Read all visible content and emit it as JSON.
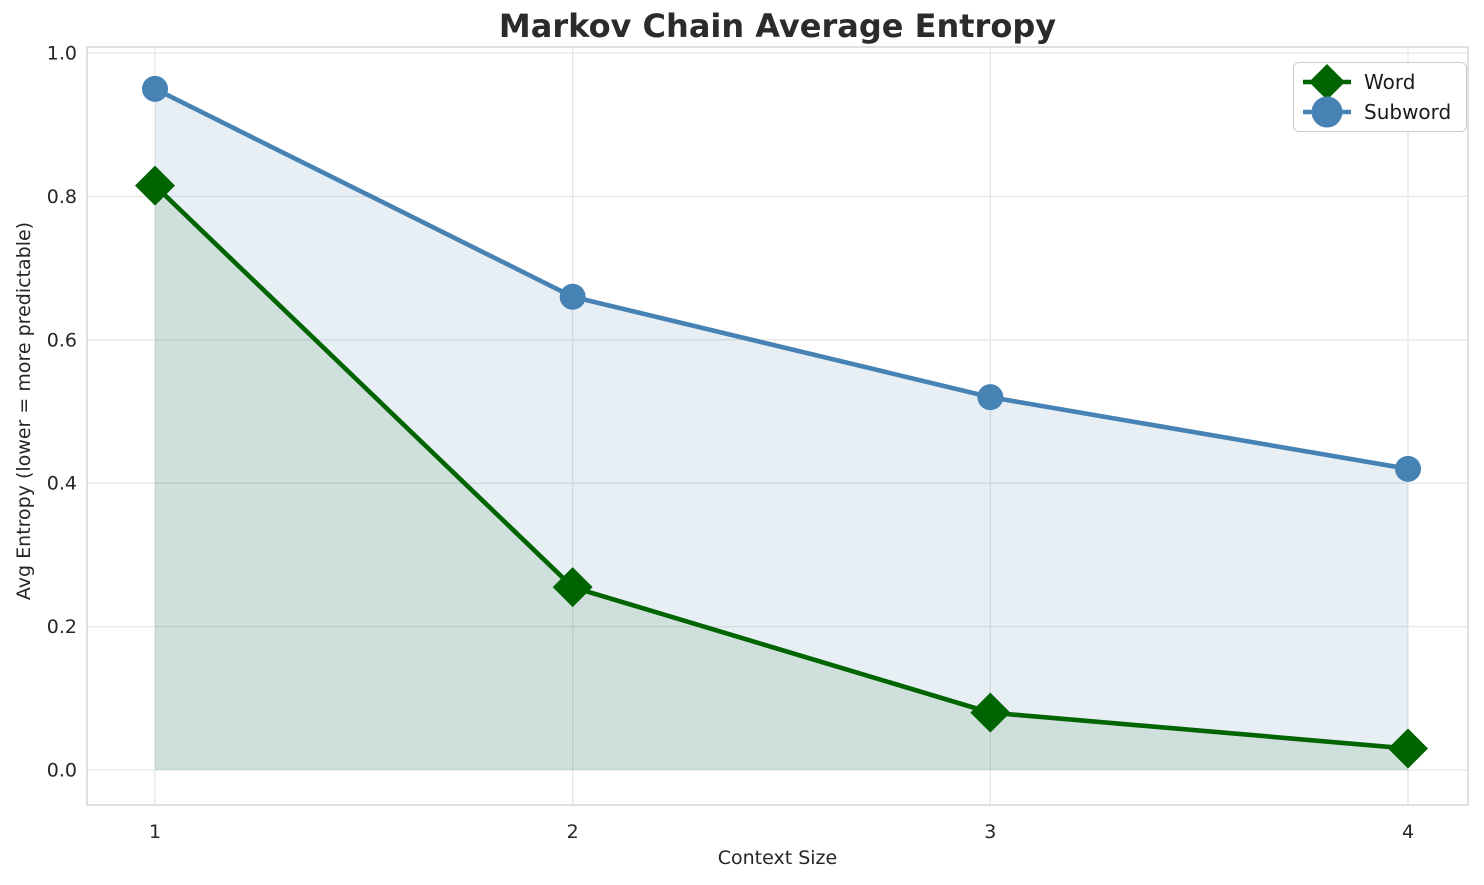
{
  "colors": {
    "background": "#ffffff",
    "text": "#262626",
    "title": "#2b2b2b",
    "grid": "#e6e6e6",
    "spine": "#d5d5d5",
    "legend_border": "#cccccc",
    "word": "#006400",
    "subword": "#4682b4",
    "word_fill": "rgba(0,100,0,0.10)",
    "subword_fill": "rgba(70,130,180,0.13)"
  },
  "chart_data": {
    "type": "line",
    "title": "Markov Chain Average Entropy",
    "xlabel": "Context Size",
    "ylabel": "Avg Entropy (lower = more predictable)",
    "x": [
      1,
      2,
      3,
      4
    ],
    "x_tick_labels": [
      "1",
      "2",
      "3",
      "4"
    ],
    "y_ticks": [
      0.0,
      0.2,
      0.4,
      0.6,
      0.8,
      1.0
    ],
    "y_tick_labels": [
      "0.0",
      "0.2",
      "0.4",
      "0.6",
      "0.8",
      "1.0"
    ],
    "xlim": [
      0.85,
      4.15
    ],
    "ylim": [
      -0.05,
      1.01
    ],
    "grid": true,
    "legend_position": "upper right",
    "series": [
      {
        "name": "Word",
        "marker": "diamond",
        "color": "#006400",
        "fill_color": "rgba(0,100,0,0.10)",
        "values": [
          0.815,
          0.255,
          0.08,
          0.03
        ]
      },
      {
        "name": "Subword",
        "marker": "circle",
        "color": "#4682b4",
        "fill_color": "rgba(70,130,180,0.13)",
        "values": [
          0.95,
          0.66,
          0.52,
          0.42
        ]
      }
    ]
  }
}
